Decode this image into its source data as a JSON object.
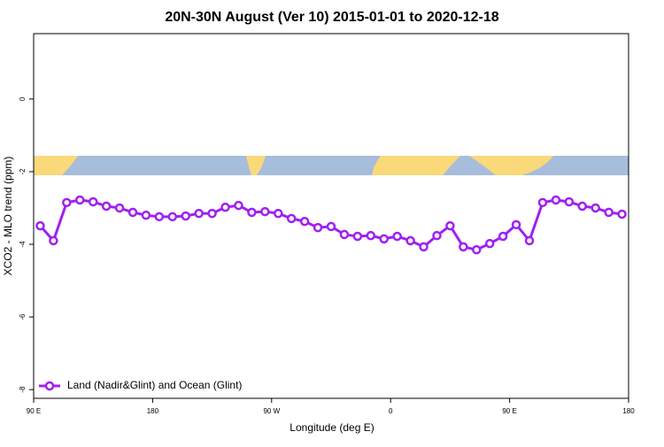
{
  "chart_data": {
    "type": "line",
    "title": "20N-30N August (Ver 10)   2015-01-01 to 2020-12-18",
    "x_label": "Longitude (deg E)",
    "y_label": "XCO2 - MLO trend (ppm)",
    "x": [
      95,
      105,
      115,
      125,
      135,
      145,
      155,
      165,
      175,
      185,
      195,
      205,
      215,
      225,
      235,
      245,
      255,
      265,
      275,
      285,
      295,
      305,
      315,
      325,
      335,
      345,
      355,
      365,
      375,
      385,
      395,
      405,
      415,
      425,
      435,
      445,
      455,
      465,
      475,
      485,
      495,
      505,
      515,
      525,
      535
    ],
    "series": [
      {
        "name": "Land (Nadir&Glint) and Ocean (Glint)",
        "color": "#a020f0",
        "values": [
          -3.49,
          -3.9,
          -2.85,
          -2.78,
          -2.83,
          -2.95,
          -3.0,
          -3.12,
          -3.2,
          -3.24,
          -3.24,
          -3.22,
          -3.15,
          -3.15,
          -2.98,
          -2.93,
          -3.12,
          -3.1,
          -3.15,
          -3.29,
          -3.37,
          -3.54,
          -3.51,
          -3.73,
          -3.78,
          -3.76,
          -3.85,
          -3.78,
          -3.9,
          -4.07,
          -3.76,
          -3.49,
          -4.07,
          -4.15,
          -3.98,
          -3.78,
          -3.46,
          -3.9,
          -2.85,
          -2.78,
          -2.83,
          -2.95,
          -3.0,
          -3.12,
          -3.17
        ]
      }
    ],
    "xlim": [
      90,
      540
    ],
    "xticks": [
      {
        "value": 90,
        "label": "90 E"
      },
      180,
      {
        "value": 270,
        "label": "90 W"
      },
      {
        "value": 360,
        "label": "0"
      },
      {
        "value": 450,
        "label": "90 E"
      },
      {
        "value": 540,
        "label": "180"
      }
    ],
    "ylim": [
      -8.24,
      1.8
    ],
    "yticks": [
      -8,
      -6,
      -4,
      -2,
      0
    ],
    "legend": "bottom-left"
  }
}
